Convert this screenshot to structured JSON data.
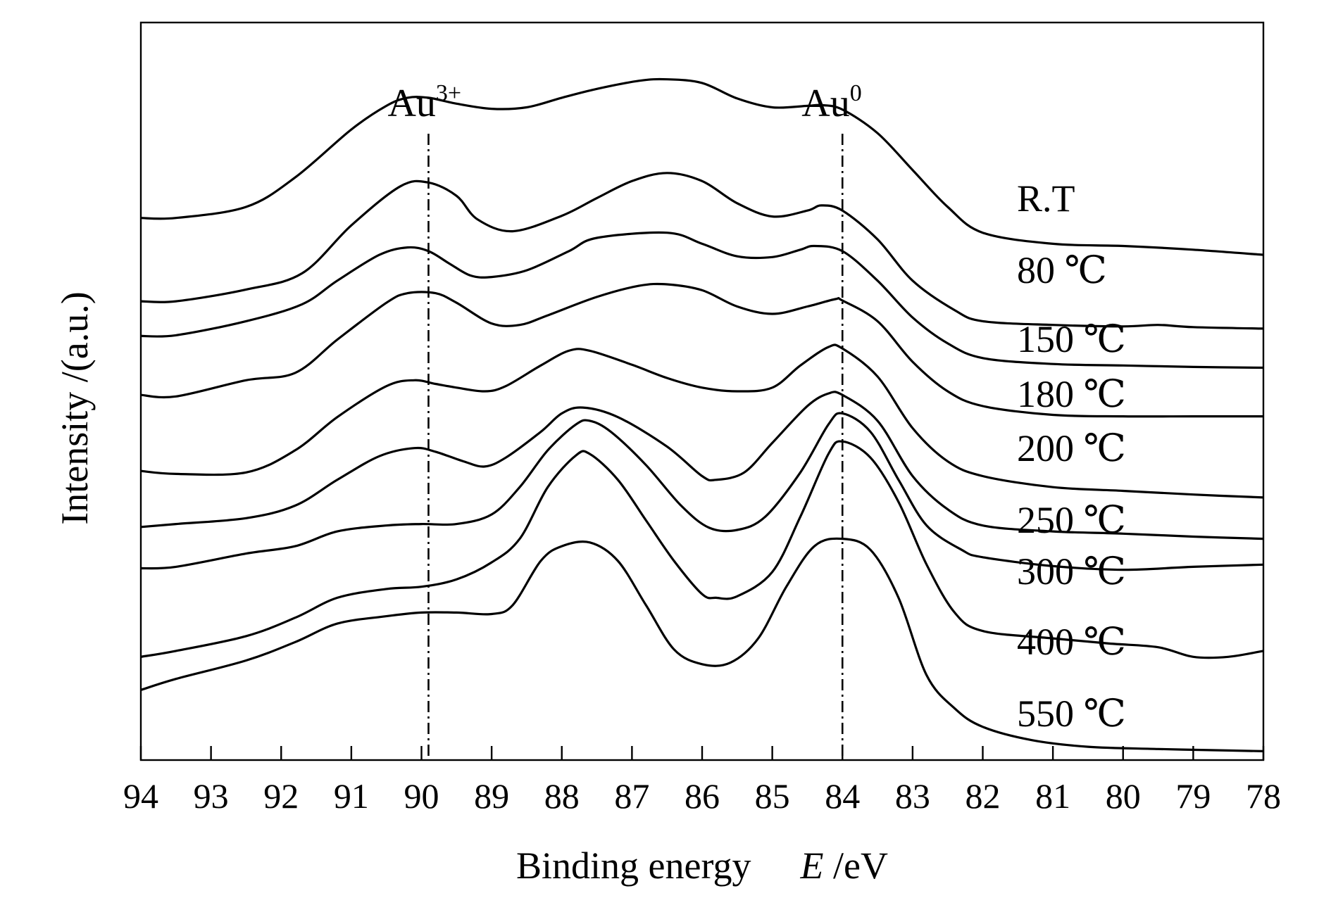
{
  "chart_data": {
    "type": "line",
    "xlabel_main": "Binding energy",
    "xlabel_var": "E",
    "xlabel_unit": " /eV",
    "ylabel": "Intensity /(a.u.)",
    "xlim": [
      94,
      78
    ],
    "x_reversed": true,
    "x_ticks": [
      94,
      93,
      92,
      91,
      90,
      89,
      88,
      87,
      86,
      85,
      84,
      83,
      82,
      81,
      80,
      79,
      78
    ],
    "grid": false,
    "y_ticks_shown": false,
    "reference_lines": [
      {
        "x": 89.9,
        "label": "Au",
        "sup": "3+"
      },
      {
        "x": 84.0,
        "label": "Au",
        "sup": "0"
      }
    ],
    "series": [
      {
        "name": "R.T",
        "points": [
          [
            94,
            0.735
          ],
          [
            93.5,
            0.735
          ],
          [
            92.5,
            0.75
          ],
          [
            91.8,
            0.79
          ],
          [
            91,
            0.855
          ],
          [
            90.5,
            0.887
          ],
          [
            90.2,
            0.898
          ],
          [
            89.9,
            0.898
          ],
          [
            89.5,
            0.89
          ],
          [
            89,
            0.883
          ],
          [
            88.5,
            0.885
          ],
          [
            88,
            0.898
          ],
          [
            87.5,
            0.91
          ],
          [
            86.9,
            0.921
          ],
          [
            86.5,
            0.923
          ],
          [
            86,
            0.918
          ],
          [
            85.5,
            0.897
          ],
          [
            85,
            0.885
          ],
          [
            84.5,
            0.887
          ],
          [
            84.3,
            0.888
          ],
          [
            84,
            0.882
          ],
          [
            83.5,
            0.85
          ],
          [
            83,
            0.8
          ],
          [
            82.5,
            0.75
          ],
          [
            82,
            0.715
          ],
          [
            81,
            0.7
          ],
          [
            80,
            0.697
          ],
          [
            79,
            0.692
          ],
          [
            78,
            0.685
          ]
        ]
      },
      {
        "name": "80 ℃",
        "points": [
          [
            94,
            0.622
          ],
          [
            93.5,
            0.622
          ],
          [
            92.5,
            0.638
          ],
          [
            91.7,
            0.66
          ],
          [
            91,
            0.725
          ],
          [
            90.3,
            0.778
          ],
          [
            89.9,
            0.783
          ],
          [
            89.5,
            0.765
          ],
          [
            89.2,
            0.733
          ],
          [
            88.7,
            0.717
          ],
          [
            88,
            0.738
          ],
          [
            87.5,
            0.762
          ],
          [
            87,
            0.785
          ],
          [
            86.5,
            0.796
          ],
          [
            86,
            0.785
          ],
          [
            85.5,
            0.755
          ],
          [
            85,
            0.737
          ],
          [
            84.5,
            0.745
          ],
          [
            84.3,
            0.752
          ],
          [
            84,
            0.745
          ],
          [
            83.5,
            0.706
          ],
          [
            83,
            0.65
          ],
          [
            82.4,
            0.61
          ],
          [
            82,
            0.595
          ],
          [
            81,
            0.59
          ],
          [
            80,
            0.588
          ],
          [
            79.5,
            0.59
          ],
          [
            79,
            0.587
          ],
          [
            78,
            0.585
          ]
        ]
      },
      {
        "name": "150 ℃",
        "points": [
          [
            94,
            0.575
          ],
          [
            93.5,
            0.576
          ],
          [
            92.5,
            0.595
          ],
          [
            91.7,
            0.618
          ],
          [
            91.2,
            0.65
          ],
          [
            90.6,
            0.685
          ],
          [
            90.2,
            0.695
          ],
          [
            89.9,
            0.69
          ],
          [
            89.6,
            0.673
          ],
          [
            89.3,
            0.657
          ],
          [
            89,
            0.655
          ],
          [
            88.5,
            0.664
          ],
          [
            87.9,
            0.69
          ],
          [
            87.5,
            0.708
          ],
          [
            86.5,
            0.715
          ],
          [
            86,
            0.7
          ],
          [
            85.5,
            0.683
          ],
          [
            85,
            0.682
          ],
          [
            84.6,
            0.692
          ],
          [
            84.4,
            0.697
          ],
          [
            84,
            0.69
          ],
          [
            83.5,
            0.65
          ],
          [
            83,
            0.6
          ],
          [
            82.5,
            0.565
          ],
          [
            82,
            0.545
          ],
          [
            81,
            0.537
          ],
          [
            80,
            0.535
          ],
          [
            79,
            0.533
          ],
          [
            78,
            0.532
          ]
        ]
      },
      {
        "name": "180 ℃",
        "points": [
          [
            94,
            0.495
          ],
          [
            93.5,
            0.493
          ],
          [
            92.5,
            0.515
          ],
          [
            91.8,
            0.525
          ],
          [
            91.2,
            0.57
          ],
          [
            90.5,
            0.62
          ],
          [
            90.2,
            0.633
          ],
          [
            89.8,
            0.633
          ],
          [
            89.5,
            0.62
          ],
          [
            89,
            0.592
          ],
          [
            88.6,
            0.59
          ],
          [
            88.2,
            0.603
          ],
          [
            87.5,
            0.628
          ],
          [
            86.9,
            0.643
          ],
          [
            86.5,
            0.645
          ],
          [
            86,
            0.637
          ],
          [
            85.5,
            0.615
          ],
          [
            85,
            0.605
          ],
          [
            84.5,
            0.615
          ],
          [
            84.1,
            0.625
          ],
          [
            84,
            0.623
          ],
          [
            83.5,
            0.595
          ],
          [
            83,
            0.54
          ],
          [
            82.5,
            0.5
          ],
          [
            82,
            0.48
          ],
          [
            81,
            0.468
          ],
          [
            80,
            0.466
          ],
          [
            79,
            0.466
          ],
          [
            78,
            0.466
          ]
        ]
      },
      {
        "name": "200 ℃",
        "points": [
          [
            94,
            0.392
          ],
          [
            93.5,
            0.388
          ],
          [
            92.5,
            0.39
          ],
          [
            91.8,
            0.42
          ],
          [
            91.2,
            0.465
          ],
          [
            90.5,
            0.507
          ],
          [
            90.1,
            0.515
          ],
          [
            89.8,
            0.51
          ],
          [
            89.5,
            0.505
          ],
          [
            89.1,
            0.5
          ],
          [
            88.8,
            0.507
          ],
          [
            88.3,
            0.535
          ],
          [
            87.9,
            0.555
          ],
          [
            87.6,
            0.555
          ],
          [
            87,
            0.536
          ],
          [
            86.5,
            0.518
          ],
          [
            86,
            0.505
          ],
          [
            85.5,
            0.5
          ],
          [
            85,
            0.505
          ],
          [
            84.6,
            0.535
          ],
          [
            84.2,
            0.56
          ],
          [
            84,
            0.558
          ],
          [
            83.5,
            0.52
          ],
          [
            83,
            0.45
          ],
          [
            82.5,
            0.405
          ],
          [
            82,
            0.385
          ],
          [
            81,
            0.37
          ],
          [
            80,
            0.365
          ],
          [
            79,
            0.36
          ],
          [
            78,
            0.356
          ]
        ]
      },
      {
        "name": "250 ℃",
        "points": [
          [
            94,
            0.316
          ],
          [
            93.5,
            0.32
          ],
          [
            92.5,
            0.328
          ],
          [
            91.8,
            0.345
          ],
          [
            91.2,
            0.38
          ],
          [
            90.6,
            0.412
          ],
          [
            90.1,
            0.423
          ],
          [
            89.8,
            0.418
          ],
          [
            89.4,
            0.405
          ],
          [
            89.1,
            0.398
          ],
          [
            88.8,
            0.41
          ],
          [
            88.3,
            0.445
          ],
          [
            88,
            0.47
          ],
          [
            87.7,
            0.478
          ],
          [
            87.2,
            0.465
          ],
          [
            86.5,
            0.425
          ],
          [
            86,
            0.385
          ],
          [
            85.8,
            0.38
          ],
          [
            85.4,
            0.39
          ],
          [
            85,
            0.43
          ],
          [
            84.5,
            0.48
          ],
          [
            84.2,
            0.497
          ],
          [
            84,
            0.495
          ],
          [
            83.5,
            0.46
          ],
          [
            83,
            0.385
          ],
          [
            82.5,
            0.34
          ],
          [
            82,
            0.318
          ],
          [
            81,
            0.31
          ],
          [
            80,
            0.307
          ],
          [
            79,
            0.303
          ],
          [
            78,
            0.3
          ]
        ]
      },
      {
        "name": "300 ℃",
        "points": [
          [
            94,
            0.26
          ],
          [
            93.5,
            0.262
          ],
          [
            92.5,
            0.28
          ],
          [
            91.8,
            0.29
          ],
          [
            91.2,
            0.31
          ],
          [
            90.5,
            0.318
          ],
          [
            90,
            0.32
          ],
          [
            89.5,
            0.32
          ],
          [
            89,
            0.333
          ],
          [
            88.6,
            0.37
          ],
          [
            88.2,
            0.42
          ],
          [
            87.8,
            0.455
          ],
          [
            87.6,
            0.46
          ],
          [
            87.3,
            0.445
          ],
          [
            86.8,
            0.4
          ],
          [
            86.3,
            0.345
          ],
          [
            85.9,
            0.315
          ],
          [
            85.5,
            0.312
          ],
          [
            85.1,
            0.33
          ],
          [
            84.6,
            0.39
          ],
          [
            84.2,
            0.455
          ],
          [
            84,
            0.47
          ],
          [
            83.6,
            0.445
          ],
          [
            83.2,
            0.38
          ],
          [
            82.8,
            0.318
          ],
          [
            82.3,
            0.285
          ],
          [
            82,
            0.275
          ],
          [
            81,
            0.263
          ],
          [
            80,
            0.258
          ],
          [
            79,
            0.262
          ],
          [
            78,
            0.265
          ]
        ]
      },
      {
        "name": "400 ℃",
        "points": [
          [
            94,
            0.14
          ],
          [
            93.5,
            0.148
          ],
          [
            92.5,
            0.168
          ],
          [
            91.8,
            0.193
          ],
          [
            91.2,
            0.22
          ],
          [
            90.5,
            0.232
          ],
          [
            90,
            0.235
          ],
          [
            89.5,
            0.245
          ],
          [
            89,
            0.268
          ],
          [
            88.6,
            0.3
          ],
          [
            88.2,
            0.37
          ],
          [
            87.8,
            0.413
          ],
          [
            87.6,
            0.415
          ],
          [
            87.2,
            0.38
          ],
          [
            86.8,
            0.325
          ],
          [
            86.4,
            0.27
          ],
          [
            86,
            0.225
          ],
          [
            85.8,
            0.22
          ],
          [
            85.5,
            0.222
          ],
          [
            85,
            0.255
          ],
          [
            84.6,
            0.33
          ],
          [
            84.2,
            0.415
          ],
          [
            84,
            0.432
          ],
          [
            83.6,
            0.41
          ],
          [
            83.2,
            0.35
          ],
          [
            82.8,
            0.265
          ],
          [
            82.4,
            0.2
          ],
          [
            82,
            0.175
          ],
          [
            81,
            0.165
          ],
          [
            80.2,
            0.158
          ],
          [
            79.5,
            0.153
          ],
          [
            79,
            0.14
          ],
          [
            78.5,
            0.14
          ],
          [
            78,
            0.148
          ]
        ]
      },
      {
        "name": "550 ℃",
        "points": [
          [
            94,
            0.095
          ],
          [
            93.5,
            0.11
          ],
          [
            92.5,
            0.135
          ],
          [
            91.8,
            0.16
          ],
          [
            91.2,
            0.185
          ],
          [
            90.5,
            0.195
          ],
          [
            90,
            0.2
          ],
          [
            89.5,
            0.2
          ],
          [
            89,
            0.198
          ],
          [
            88.7,
            0.21
          ],
          [
            88.3,
            0.27
          ],
          [
            88,
            0.29
          ],
          [
            87.6,
            0.295
          ],
          [
            87.2,
            0.27
          ],
          [
            86.8,
            0.21
          ],
          [
            86.4,
            0.15
          ],
          [
            86,
            0.13
          ],
          [
            85.6,
            0.132
          ],
          [
            85.2,
            0.165
          ],
          [
            84.8,
            0.235
          ],
          [
            84.4,
            0.29
          ],
          [
            84,
            0.3
          ],
          [
            83.6,
            0.285
          ],
          [
            83.2,
            0.22
          ],
          [
            82.8,
            0.115
          ],
          [
            82.4,
            0.07
          ],
          [
            82,
            0.045
          ],
          [
            81.3,
            0.027
          ],
          [
            80.5,
            0.018
          ],
          [
            79.5,
            0.015
          ],
          [
            78.5,
            0.013
          ],
          [
            78,
            0.012
          ]
        ]
      }
    ]
  }
}
